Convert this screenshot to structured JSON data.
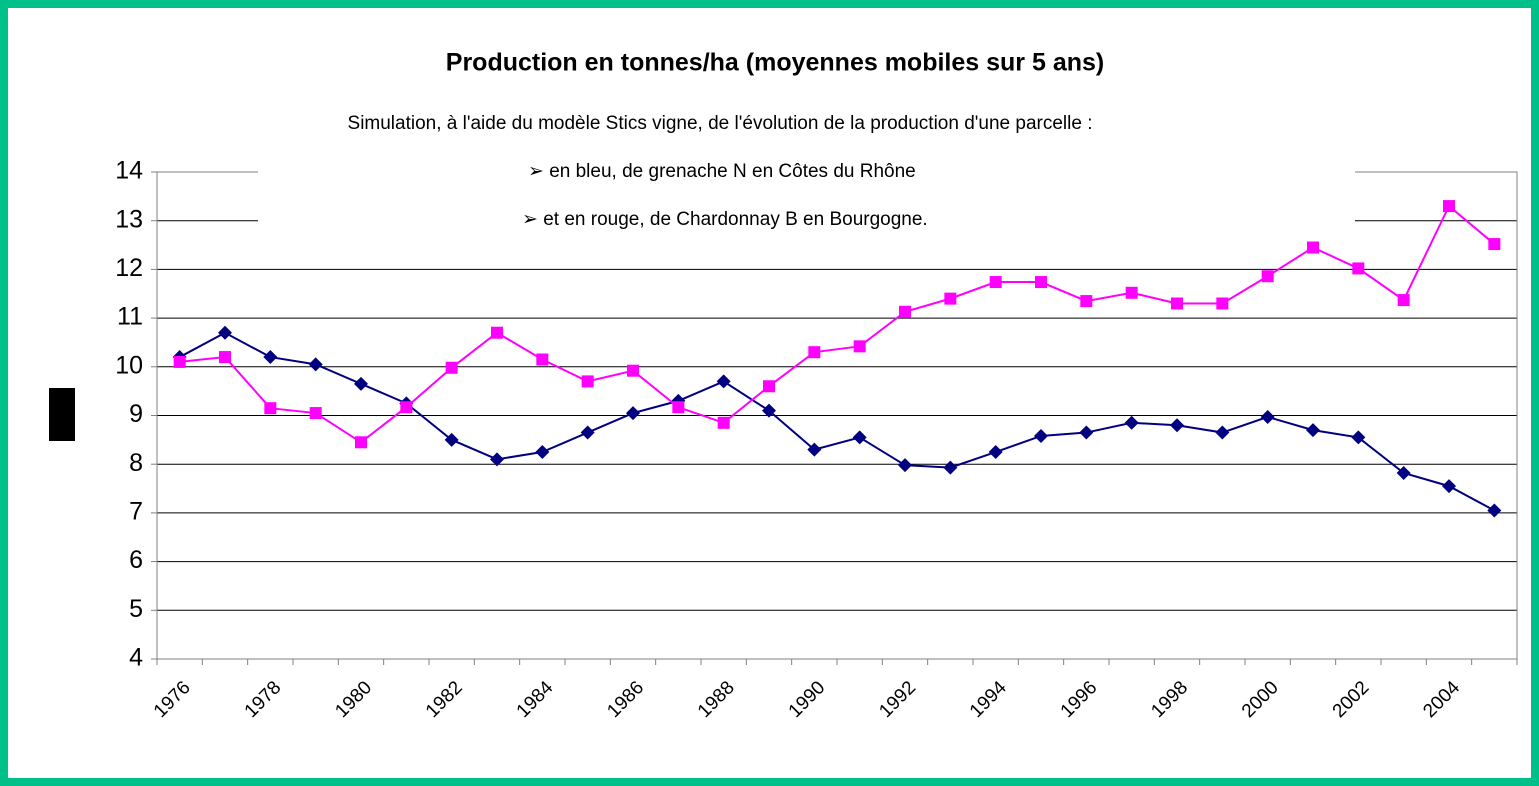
{
  "chart_data": {
    "type": "line",
    "title": "Production en tonnes/ha (moyennes mobiles sur 5 ans)",
    "subtitle": "Simulation, à l'aide du modèle Stics vigne, de l'évolution de la production d'une parcelle :",
    "annotations": [
      "➢ en bleu, de grenache N en Côtes du Rhône",
      "➢ et en rouge, de Chardonnay B en Bourgogne."
    ],
    "categories": [
      "1976",
      null,
      "1978",
      null,
      "1980",
      null,
      "1982",
      null,
      "1984",
      null,
      "1986",
      null,
      "1988",
      null,
      "1990",
      null,
      "1992",
      null,
      "1994",
      null,
      "1996",
      null,
      "1998",
      null,
      "2000",
      null,
      "2002",
      null,
      "2004",
      null
    ],
    "series": [
      {
        "color": "#000080",
        "marker": "diamond",
        "values": [
          10.2,
          10.7,
          10.2,
          10.05,
          9.65,
          9.25,
          8.5,
          8.1,
          8.25,
          8.65,
          9.05,
          9.3,
          9.7,
          9.1,
          8.3,
          8.55,
          7.98,
          7.93,
          8.25,
          8.58,
          8.65,
          8.85,
          8.8,
          8.65,
          8.97,
          8.7,
          8.55,
          7.82,
          7.55,
          7.05
        ]
      },
      {
        "color": "#ff00ff",
        "marker": "square",
        "values": [
          10.1,
          10.2,
          9.15,
          9.05,
          8.45,
          9.17,
          9.98,
          10.7,
          10.15,
          9.7,
          9.92,
          9.17,
          8.85,
          9.6,
          10.3,
          10.42,
          11.13,
          11.4,
          11.74,
          11.74,
          11.35,
          11.52,
          11.3,
          11.3,
          11.86,
          12.45,
          12.02,
          11.37,
          13.3,
          12.52
        ]
      }
    ],
    "ylim": [
      4,
      14
    ],
    "yticks": [
      4,
      5,
      6,
      7,
      8,
      9,
      10,
      11,
      12,
      13,
      14
    ],
    "grid": true
  }
}
